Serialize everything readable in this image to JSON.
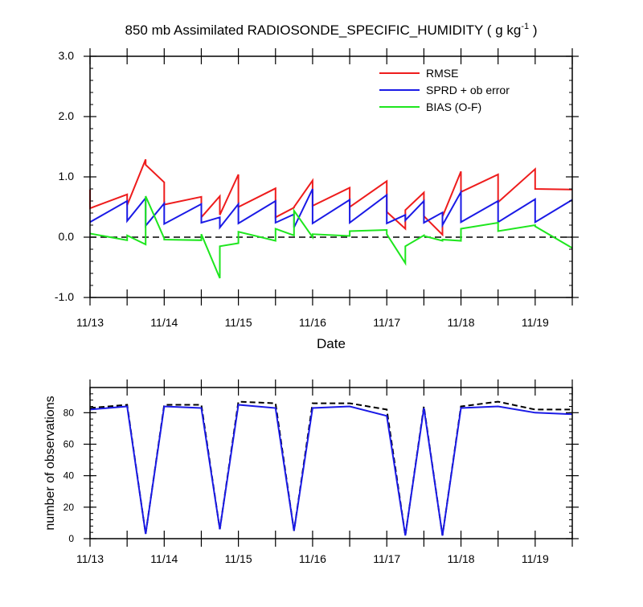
{
  "chart_data": [
    {
      "type": "line",
      "title_main": "850 mb Assimilated RADIOSONDE_SPECIFIC_HUMIDITY ( g kg",
      "title_sup": "-1",
      "title_end": " )",
      "xlabel": "Date",
      "ylabel": "",
      "xlim": [
        0,
        6.5
      ],
      "ylim": [
        -1.0,
        3.0
      ],
      "yticks": [
        -1.0,
        0.0,
        1.0,
        2.0,
        3.0
      ],
      "ytick_labels": [
        "-1.0",
        "0.0",
        "1.0",
        "2.0",
        "3.0"
      ],
      "xticks": [
        0,
        1,
        2,
        3,
        4,
        5,
        6
      ],
      "xtick_labels": [
        "11/13",
        "11/14",
        "11/15",
        "11/16",
        "11/17",
        "11/18",
        "11/19"
      ],
      "reference_line": {
        "y": 0.0,
        "style": "dashed",
        "color": "#000000"
      },
      "legend": {
        "position": "top-right",
        "entries": [
          "RMSE",
          "SPRD + ob error",
          "BIAS (O-F)"
        ]
      },
      "series": [
        {
          "name": "RMSE",
          "color": "#ee1c1c",
          "x": [
            0.0,
            0.0,
            0.5,
            0.5,
            0.75,
            0.75,
            1.0,
            1.0,
            1.5,
            1.5,
            1.75,
            1.75,
            2.0,
            2.0,
            2.5,
            2.5,
            2.75,
            2.75,
            3.0,
            3.0,
            3.5,
            3.5,
            4.0,
            4.0,
            4.25,
            4.25,
            4.5,
            4.5,
            4.75,
            4.75,
            5.0,
            5.0,
            5.5,
            5.5,
            6.0,
            6.0,
            6.5
          ],
          "y": [
            0.79,
            0.48,
            0.71,
            0.53,
            1.29,
            1.2,
            0.91,
            0.54,
            0.67,
            0.33,
            0.68,
            0.37,
            1.04,
            0.5,
            0.81,
            0.33,
            0.49,
            0.5,
            0.94,
            0.52,
            0.82,
            0.5,
            0.93,
            0.42,
            0.14,
            0.45,
            0.74,
            0.35,
            0.04,
            0.34,
            1.09,
            0.75,
            1.04,
            0.58,
            1.13,
            0.8,
            0.79
          ]
        },
        {
          "name": "SPRD + ob error",
          "color": "#1a1ae6",
          "x": [
            0.0,
            0.5,
            0.5,
            0.75,
            0.75,
            1.0,
            1.0,
            1.5,
            1.5,
            1.75,
            1.75,
            2.0,
            2.0,
            2.5,
            2.5,
            2.75,
            2.75,
            3.0,
            3.0,
            3.5,
            3.5,
            4.0,
            4.0,
            4.25,
            4.25,
            4.5,
            4.5,
            4.75,
            4.75,
            5.0,
            5.0,
            5.5,
            5.5,
            6.0,
            6.0,
            6.5
          ],
          "y": [
            0.25,
            0.6,
            0.27,
            0.65,
            0.19,
            0.56,
            0.22,
            0.55,
            0.24,
            0.33,
            0.16,
            0.55,
            0.23,
            0.6,
            0.24,
            0.38,
            0.16,
            0.8,
            0.23,
            0.62,
            0.24,
            0.7,
            0.23,
            0.37,
            0.28,
            0.6,
            0.24,
            0.41,
            0.2,
            0.75,
            0.25,
            0.6,
            0.25,
            0.63,
            0.25,
            0.62
          ]
        },
        {
          "name": "BIAS (O-F)",
          "color": "#1ee61e",
          "x": [
            0.0,
            0.5,
            0.5,
            0.75,
            0.75,
            1.0,
            1.0,
            1.5,
            1.5,
            1.75,
            1.75,
            2.0,
            2.0,
            2.5,
            2.5,
            2.75,
            2.75,
            3.0,
            3.0,
            3.5,
            3.5,
            4.0,
            4.0,
            4.25,
            4.25,
            4.5,
            4.5,
            4.75,
            4.75,
            5.0,
            5.0,
            5.5,
            5.5,
            6.0,
            6.0,
            6.5
          ],
          "y": [
            0.06,
            -0.05,
            0.03,
            -0.12,
            0.68,
            -0.02,
            -0.04,
            -0.05,
            0.05,
            -0.68,
            -0.15,
            -0.1,
            0.09,
            -0.06,
            0.14,
            0.03,
            0.44,
            0.0,
            0.05,
            0.02,
            0.1,
            0.12,
            0.05,
            -0.43,
            -0.15,
            0.03,
            0.02,
            -0.06,
            -0.04,
            -0.06,
            0.14,
            0.24,
            0.1,
            0.2,
            0.18,
            -0.18
          ]
        }
      ]
    },
    {
      "type": "line",
      "title": "",
      "xlabel": "",
      "ylabel": "number of observations",
      "xlim": [
        0,
        6.5
      ],
      "ylim": [
        0,
        96
      ],
      "yticks": [
        0,
        20,
        40,
        60,
        80
      ],
      "ytick_labels": [
        "0",
        "20",
        "40",
        "60",
        "80"
      ],
      "xticks": [
        0,
        1,
        2,
        3,
        4,
        5,
        6
      ],
      "xtick_labels": [
        "11/13",
        "11/14",
        "11/15",
        "11/16",
        "11/17",
        "11/18",
        "11/19"
      ],
      "x": [
        0.0,
        0.5,
        0.75,
        1.0,
        1.5,
        1.75,
        2.0,
        2.5,
        2.75,
        3.0,
        3.5,
        4.0,
        4.25,
        4.5,
        4.75,
        5.0,
        5.5,
        6.0,
        6.5
      ],
      "series": [
        {
          "name": "dashed",
          "color": "#000000",
          "style": "dashed",
          "values": [
            83,
            85,
            3,
            85,
            85,
            6,
            87,
            86,
            5,
            86,
            86,
            82,
            2,
            84,
            2,
            84,
            87,
            82,
            82
          ]
        },
        {
          "name": "solid",
          "color": "#1a1ae6",
          "style": "solid",
          "values": [
            82,
            84,
            3,
            84,
            83,
            6,
            85,
            83,
            5,
            83,
            84,
            78,
            2,
            83,
            2,
            83,
            84,
            80,
            79
          ]
        }
      ]
    }
  ]
}
